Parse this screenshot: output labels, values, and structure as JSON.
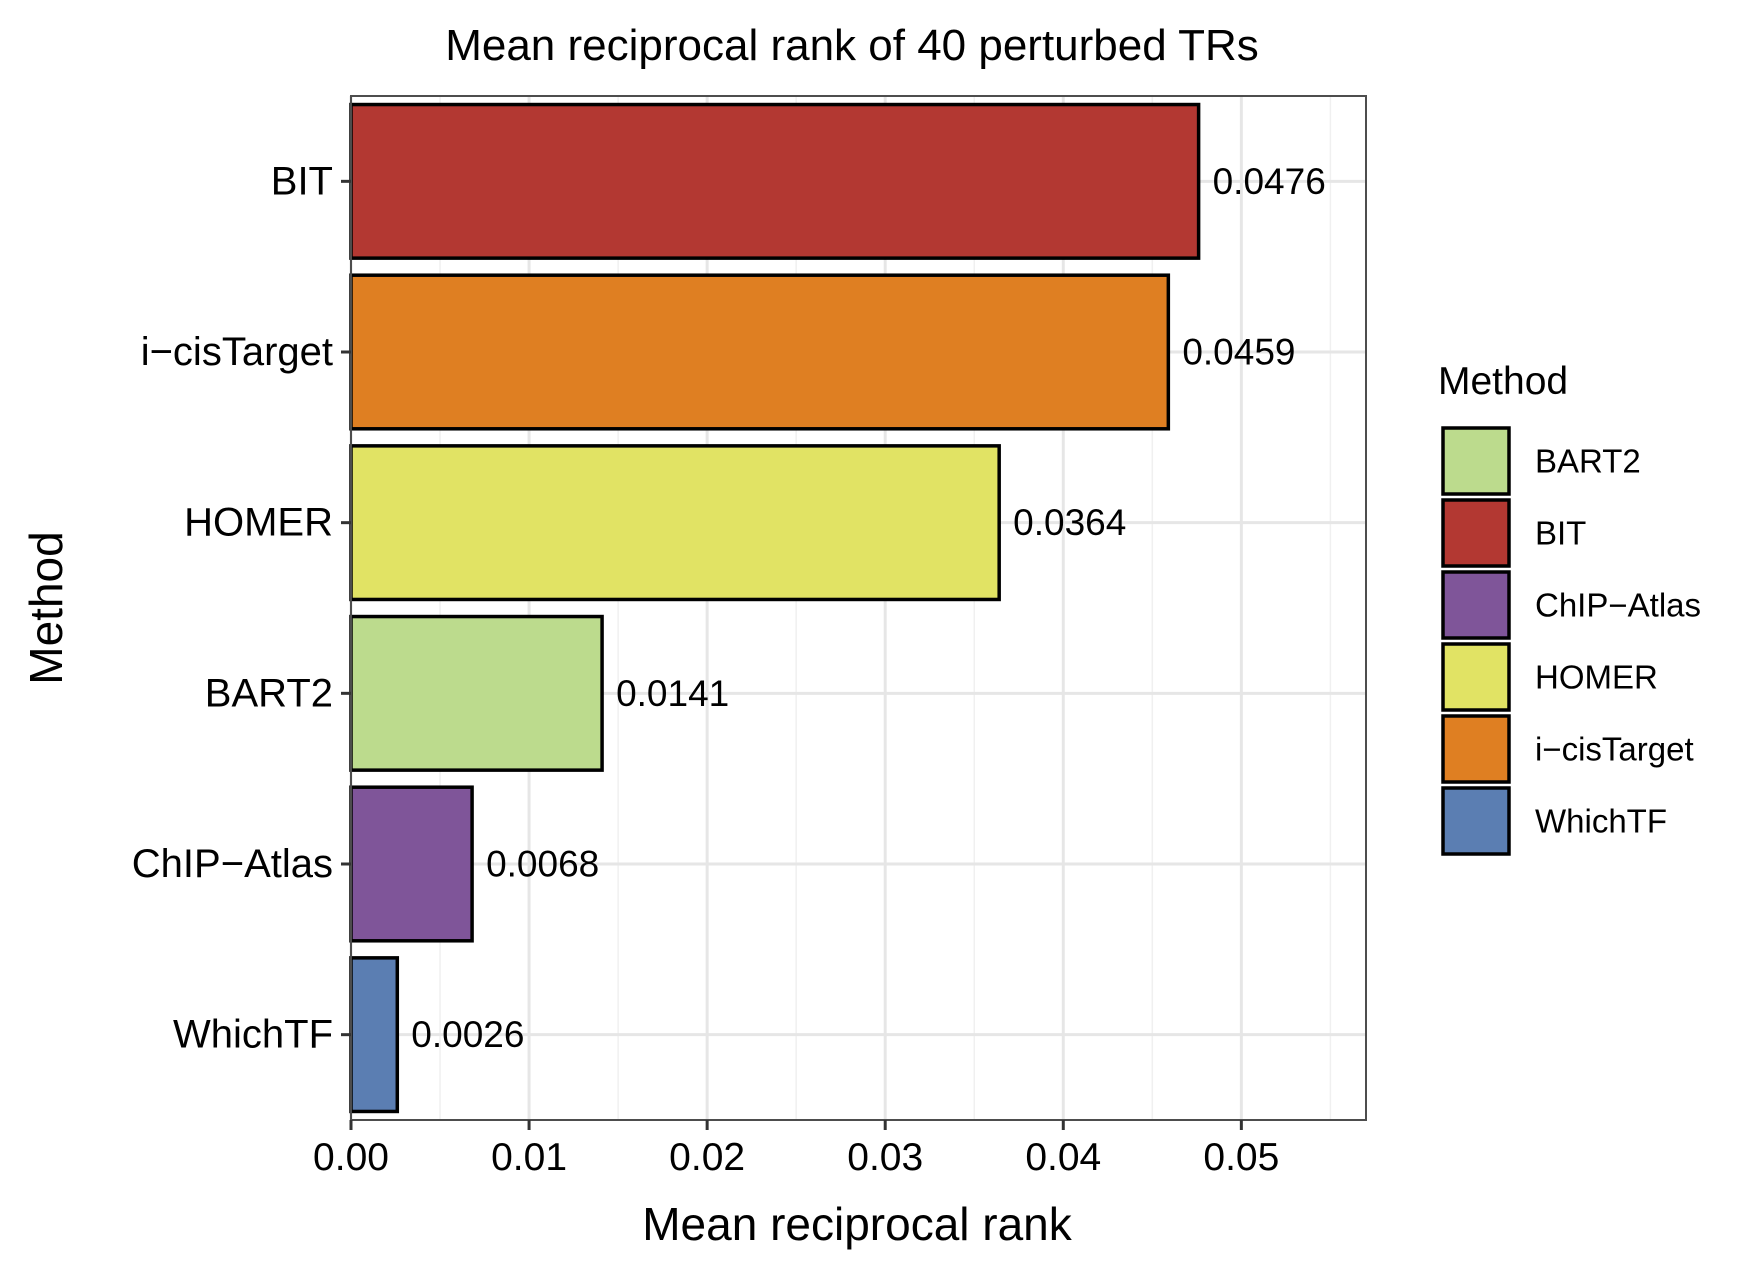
{
  "chart_data": {
    "type": "bar",
    "orientation": "horizontal",
    "title": "Mean reciprocal rank of 40 perturbed TRs",
    "xlabel": "Mean reciprocal rank",
    "ylabel": "Method",
    "xlim": [
      0,
      0.057
    ],
    "x_ticks": [
      0.0,
      0.01,
      0.02,
      0.03,
      0.04,
      0.05
    ],
    "x_tick_labels": [
      "0.00",
      "0.01",
      "0.02",
      "0.03",
      "0.04",
      "0.05"
    ],
    "grid": true,
    "categories": [
      "BIT",
      "i−cisTarget",
      "HOMER",
      "BART2",
      "ChIP−Atlas",
      "WhichTF"
    ],
    "values": [
      0.0476,
      0.0459,
      0.0364,
      0.0141,
      0.0068,
      0.0026
    ],
    "value_labels": [
      "0.0476",
      "0.0459",
      "0.0364",
      "0.0141",
      "0.0068",
      "0.0026"
    ],
    "colors": [
      "#b33832",
      "#df7f22",
      "#e1e364",
      "#bcdb8d",
      "#7f5599",
      "#5b7eb2"
    ],
    "legend": {
      "title": "Method",
      "placement": "right",
      "entries": [
        {
          "label": "BART2",
          "color": "#bcdb8d"
        },
        {
          "label": "BIT",
          "color": "#b33832"
        },
        {
          "label": "ChIP−Atlas",
          "color": "#7f5599"
        },
        {
          "label": "HOMER",
          "color": "#e1e364"
        },
        {
          "label": "i−cisTarget",
          "color": "#df7f22"
        },
        {
          "label": "WhichTF",
          "color": "#5b7eb2"
        }
      ]
    }
  }
}
